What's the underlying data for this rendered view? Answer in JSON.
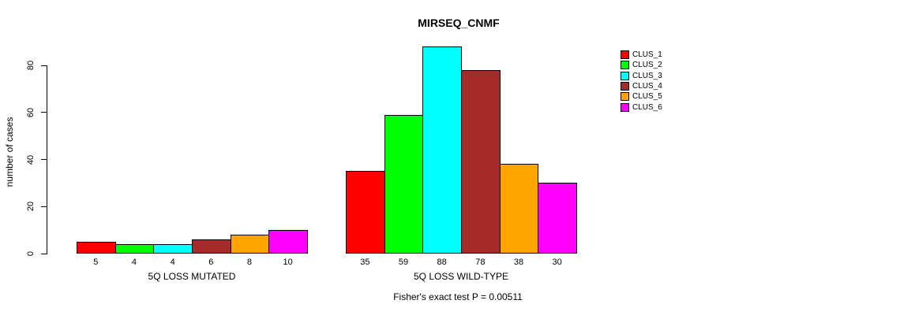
{
  "title": "MIRSEQ_CNMF",
  "ylabel": "number of cases",
  "footer": "Fisher's exact test P = 0.00511",
  "chart_data": {
    "type": "bar",
    "title": "MIRSEQ_CNMF",
    "xlabel": "",
    "ylabel": "number of cases",
    "ylim": [
      0,
      80
    ],
    "yticks": [
      0,
      20,
      40,
      60,
      80
    ],
    "grid": false,
    "legend_position": "right",
    "series_names": [
      "CLUS_1",
      "CLUS_2",
      "CLUS_3",
      "CLUS_4",
      "CLUS_5",
      "CLUS_6"
    ],
    "series_colors": [
      "#FF0000",
      "#00FF00",
      "#00FFFF",
      "#A52A2A",
      "#FFA500",
      "#FF00FF"
    ],
    "groups": [
      {
        "label": "5Q LOSS MUTATED",
        "values": [
          5,
          4,
          4,
          6,
          8,
          10
        ]
      },
      {
        "label": "5Q LOSS WILD-TYPE",
        "values": [
          35,
          59,
          88,
          78,
          38,
          30
        ]
      }
    ],
    "annotation": "Fisher's exact test P = 0.00511"
  }
}
